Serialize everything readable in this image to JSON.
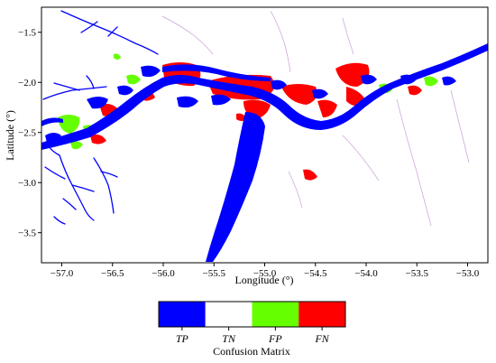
{
  "map": {
    "x_axis_title": "Longitude (°)",
    "y_axis_title": "Latitude (°)",
    "x_ticks": [
      {
        "value": -57.0,
        "label": "−57.0"
      },
      {
        "value": -56.5,
        "label": "−56.5"
      },
      {
        "value": -56.0,
        "label": "−56.0"
      },
      {
        "value": -55.5,
        "label": "−55.5"
      },
      {
        "value": -55.0,
        "label": "−55.0"
      },
      {
        "value": -54.5,
        "label": "−54.5"
      },
      {
        "value": -54.0,
        "label": "−54.0"
      },
      {
        "value": -53.5,
        "label": "−53.5"
      },
      {
        "value": -53.0,
        "label": "−53.0"
      }
    ],
    "y_ticks": [
      {
        "value": -1.5,
        "label": "−1.5"
      },
      {
        "value": -2.0,
        "label": "−2.0"
      },
      {
        "value": -2.5,
        "label": "−2.5"
      },
      {
        "value": -3.0,
        "label": "−3.0"
      },
      {
        "value": -3.5,
        "label": "−3.5"
      }
    ],
    "x_range": [
      -57.2,
      -52.8
    ],
    "y_range": [
      -3.8,
      -1.25
    ]
  },
  "legend": {
    "title": "Confusion Matrix",
    "items": [
      {
        "label": "TP",
        "color": "#0000ff"
      },
      {
        "label": "TN",
        "color": "#ffffff"
      },
      {
        "label": "FP",
        "color": "#66ff00"
      },
      {
        "label": "FN",
        "color": "#ff0000"
      }
    ]
  }
}
